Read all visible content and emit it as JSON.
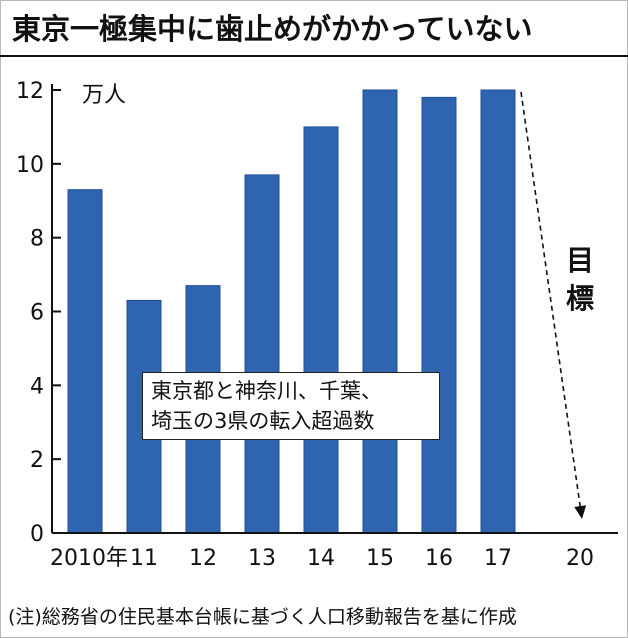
{
  "title": "東京一極集中に歯止めがかかっていない",
  "unit_label": "万人",
  "note": "(注)総務省の住民基本台帳に基づく人口移動報告を基に作成",
  "legend": {
    "line1": "東京都と神奈川、千葉、",
    "line2": "埼玉の3県の転入超過数"
  },
  "goal_label": {
    "char1": "目",
    "char2": "標"
  },
  "colors": {
    "bar": "#2e64b0",
    "bar_edge": "#1d4f97",
    "axis": "#111111",
    "arrow": "#111111"
  },
  "chart_data": {
    "type": "bar",
    "categories": [
      "2010年",
      "11",
      "12",
      "13",
      "14",
      "15",
      "16",
      "17",
      "20"
    ],
    "values": [
      9.3,
      6.3,
      6.7,
      9.7,
      11.0,
      12.0,
      11.8,
      12.0,
      null
    ],
    "ylim": [
      0,
      12
    ],
    "yticks": [
      0,
      2,
      4,
      6,
      8,
      10,
      12
    ],
    "ylabel": "万人",
    "annotation": {
      "label": "目標",
      "from": {
        "x": "17",
        "y": 12.0
      },
      "to": {
        "x": "20",
        "y": 0
      }
    },
    "grid": false
  }
}
